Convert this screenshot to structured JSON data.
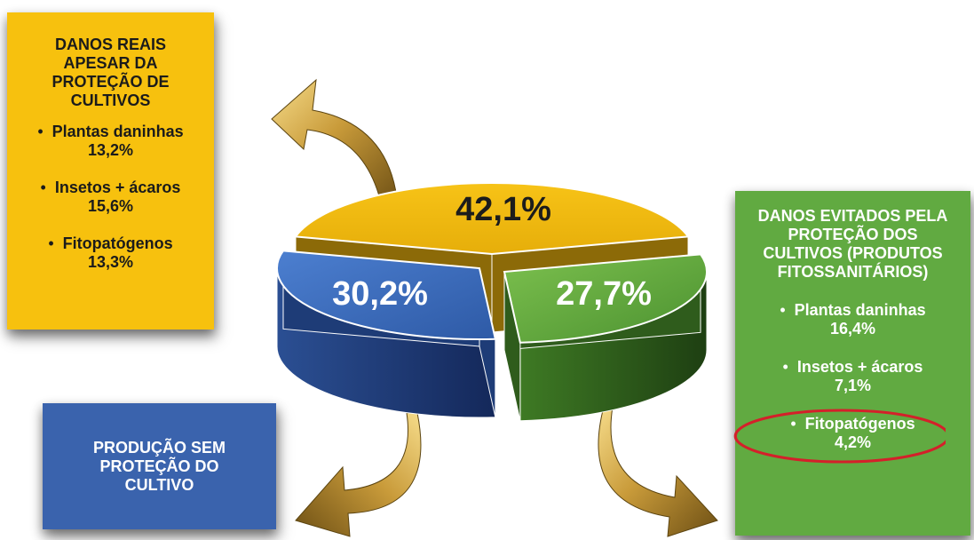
{
  "chart_data": {
    "type": "pie",
    "slices": [
      {
        "label": "42,1%",
        "value": 42.1,
        "color": "#f0b810"
      },
      {
        "label": "27,7%",
        "value": 27.7,
        "color": "#5ea63c"
      },
      {
        "label": "30,2%",
        "value": 30.2,
        "color": "#3a66b4"
      }
    ]
  },
  "boxes": {
    "yellow": {
      "title": "DANOS REAIS APESAR DA PROTEÇÃO DE CULTIVOS",
      "items": [
        {
          "bullet": "•",
          "name": "Plantas daninhas",
          "value": "13,2%"
        },
        {
          "bullet": "•",
          "name": "Insetos + ácaros",
          "value": "15,6%"
        },
        {
          "bullet": "•",
          "name": "Fitopatógenos",
          "value": "13,3%"
        }
      ]
    },
    "green": {
      "title": "DANOS EVITADOS PELA PROTEÇÃO DOS CULTIVOS (PRODUTOS FITOSSANITÁRIOS)",
      "items": [
        {
          "bullet": "•",
          "name": "Plantas daninhas",
          "value": "16,4%"
        },
        {
          "bullet": "•",
          "name": "Insetos + ácaros",
          "value": "7,1%"
        },
        {
          "bullet": "•",
          "name": "Fitopatógenos",
          "value": "4,2%",
          "highlight": true
        }
      ]
    },
    "blue": {
      "title": "PRODUÇÃO SEM PROTEÇÃO DO CULTIVO"
    }
  },
  "colors": {
    "yellow_box": "#f7c10e",
    "green_box": "#61aa41",
    "blue_box": "#3a63ad",
    "highlight_ring": "#d4202a",
    "arrow_gold": "#c89a3a"
  }
}
